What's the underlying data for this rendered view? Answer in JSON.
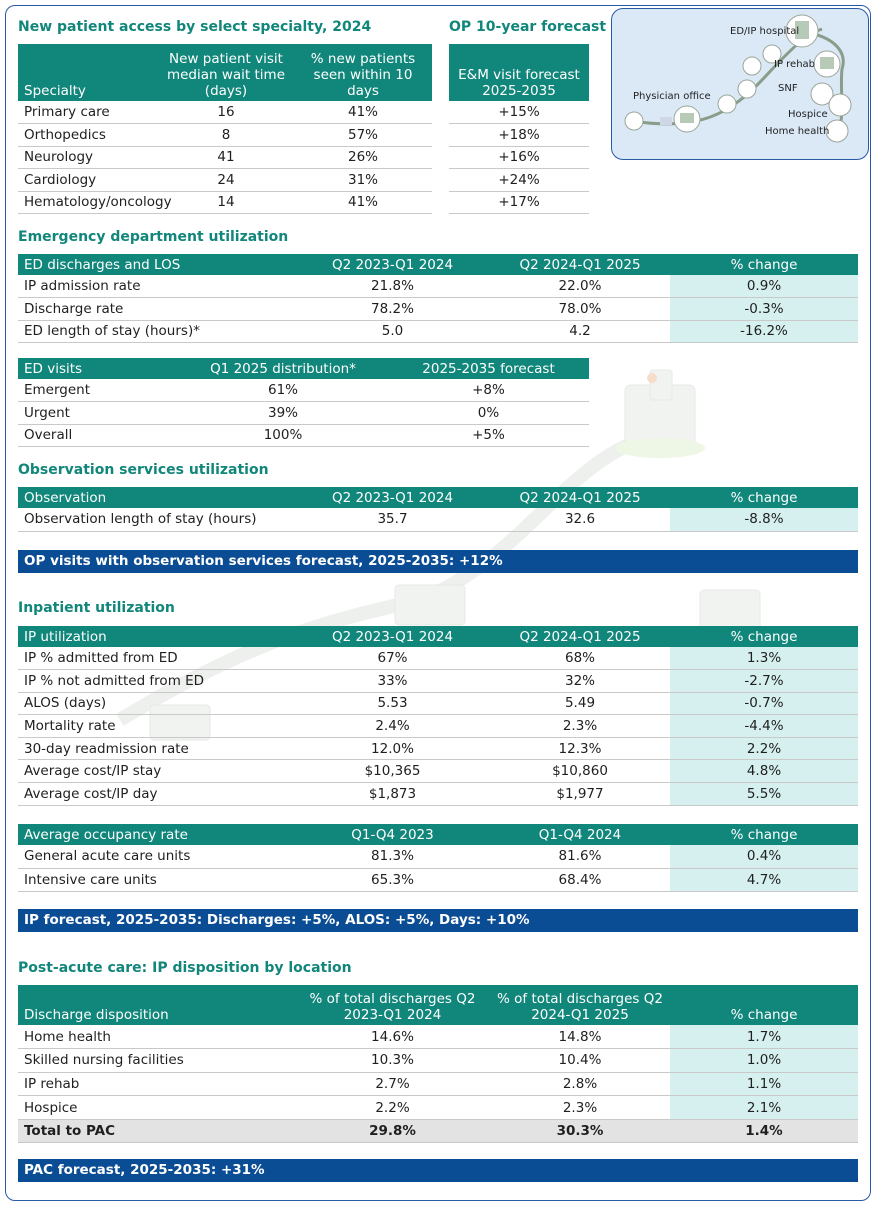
{
  "new_patient": {
    "title": "New patient access by select specialty, 2024",
    "headers": [
      "Specialty",
      "New patient visit median wait time (days)",
      "% new patients seen within 10 days"
    ],
    "rows": [
      [
        "Primary care",
        "16",
        "41%"
      ],
      [
        "Orthopedics",
        "8",
        "57%"
      ],
      [
        "Neurology",
        "41",
        "26%"
      ],
      [
        "Cardiology",
        "24",
        "31%"
      ],
      [
        "Hematology/oncology",
        "14",
        "41%"
      ]
    ]
  },
  "op_forecast": {
    "title": "OP 10-year forecast",
    "header": "E&M visit forecast 2025-2035",
    "rows": [
      "+15%",
      "+18%",
      "+16%",
      "+24%",
      "+17%"
    ]
  },
  "care_continuum": {
    "labels": [
      "ED/IP hospital",
      "IP rehab",
      "SNF",
      "Hospice",
      "Home health",
      "Physician office"
    ]
  },
  "ed": {
    "title": "Emergency department utilization",
    "discharges_table": {
      "headers": [
        "ED discharges and LOS",
        "Q2 2023-Q1 2024",
        "Q2 2024-Q1 2025",
        "% change"
      ],
      "rows": [
        [
          "IP admission rate",
          "21.8%",
          "22.0%",
          "0.9%"
        ],
        [
          "Discharge rate",
          "78.2%",
          "78.0%",
          "-0.3%"
        ],
        [
          "ED length of stay (hours)*",
          "5.0",
          "4.2",
          "-16.2%"
        ]
      ]
    },
    "visits_table": {
      "headers": [
        "ED visits",
        "Q1 2025 distribution*",
        "2025-2035 forecast"
      ],
      "rows": [
        [
          "Emergent",
          "61%",
          "+8%"
        ],
        [
          "Urgent",
          "39%",
          "0%"
        ],
        [
          "Overall",
          "100%",
          "+5%"
        ]
      ]
    }
  },
  "observation": {
    "title": "Observation services utilization",
    "headers": [
      "Observation",
      "Q2 2023-Q1 2024",
      "Q2 2024-Q1 2025",
      "% change"
    ],
    "rows": [
      [
        "Observation length of stay (hours)",
        "35.7",
        "32.6",
        "-8.8%"
      ]
    ],
    "forecast": "OP visits with observation services forecast, 2025-2035: +12%"
  },
  "inpatient": {
    "title": "Inpatient utilization",
    "util_table": {
      "headers": [
        "IP utilization",
        "Q2 2023-Q1 2024",
        "Q2 2024-Q1 2025",
        "% change"
      ],
      "rows": [
        [
          "IP % admitted from ED",
          "67%",
          "68%",
          "1.3%"
        ],
        [
          "IP % not admitted from ED",
          "33%",
          "32%",
          "-2.7%"
        ],
        [
          "ALOS (days)",
          "5.53",
          "5.49",
          "-0.7%"
        ],
        [
          "Mortality rate",
          "2.4%",
          "2.3%",
          "-4.4%"
        ],
        [
          "30-day readmission rate",
          "12.0%",
          "12.3%",
          "2.2%"
        ],
        [
          "Average cost/IP stay",
          "$10,365",
          "$10,860",
          "4.8%"
        ],
        [
          "Average cost/IP day",
          "$1,873",
          "$1,977",
          "5.5%"
        ]
      ]
    },
    "occupancy_table": {
      "headers": [
        "Average occupancy rate",
        "Q1-Q4 2023",
        "Q1-Q4 2024",
        "% change"
      ],
      "rows": [
        [
          "General acute care units",
          "81.3%",
          "81.6%",
          "0.4%"
        ],
        [
          "Intensive care units",
          "65.3%",
          "68.4%",
          "4.7%"
        ]
      ]
    },
    "forecast": "IP forecast, 2025-2035: Discharges: +5%, ALOS: +5%, Days: +10%"
  },
  "pac": {
    "title": "Post-acute care: IP disposition by location",
    "headers": [
      "Discharge disposition",
      "% of total discharges Q2 2023-Q1 2024",
      "% of total discharges Q2 2024-Q1 2025",
      "% change"
    ],
    "rows": [
      [
        "Home health",
        "14.6%",
        "14.8%",
        "1.7%"
      ],
      [
        "Skilled nursing facilities",
        "10.3%",
        "10.4%",
        "1.0%"
      ],
      [
        "IP rehab",
        "2.7%",
        "2.8%",
        "1.1%"
      ],
      [
        "Hospice",
        "2.2%",
        "2.3%",
        "2.1%"
      ]
    ],
    "total": [
      "Total to PAC",
      "29.8%",
      "30.3%",
      "1.4%"
    ],
    "forecast": "PAC forecast, 2025-2035: +31%"
  }
}
